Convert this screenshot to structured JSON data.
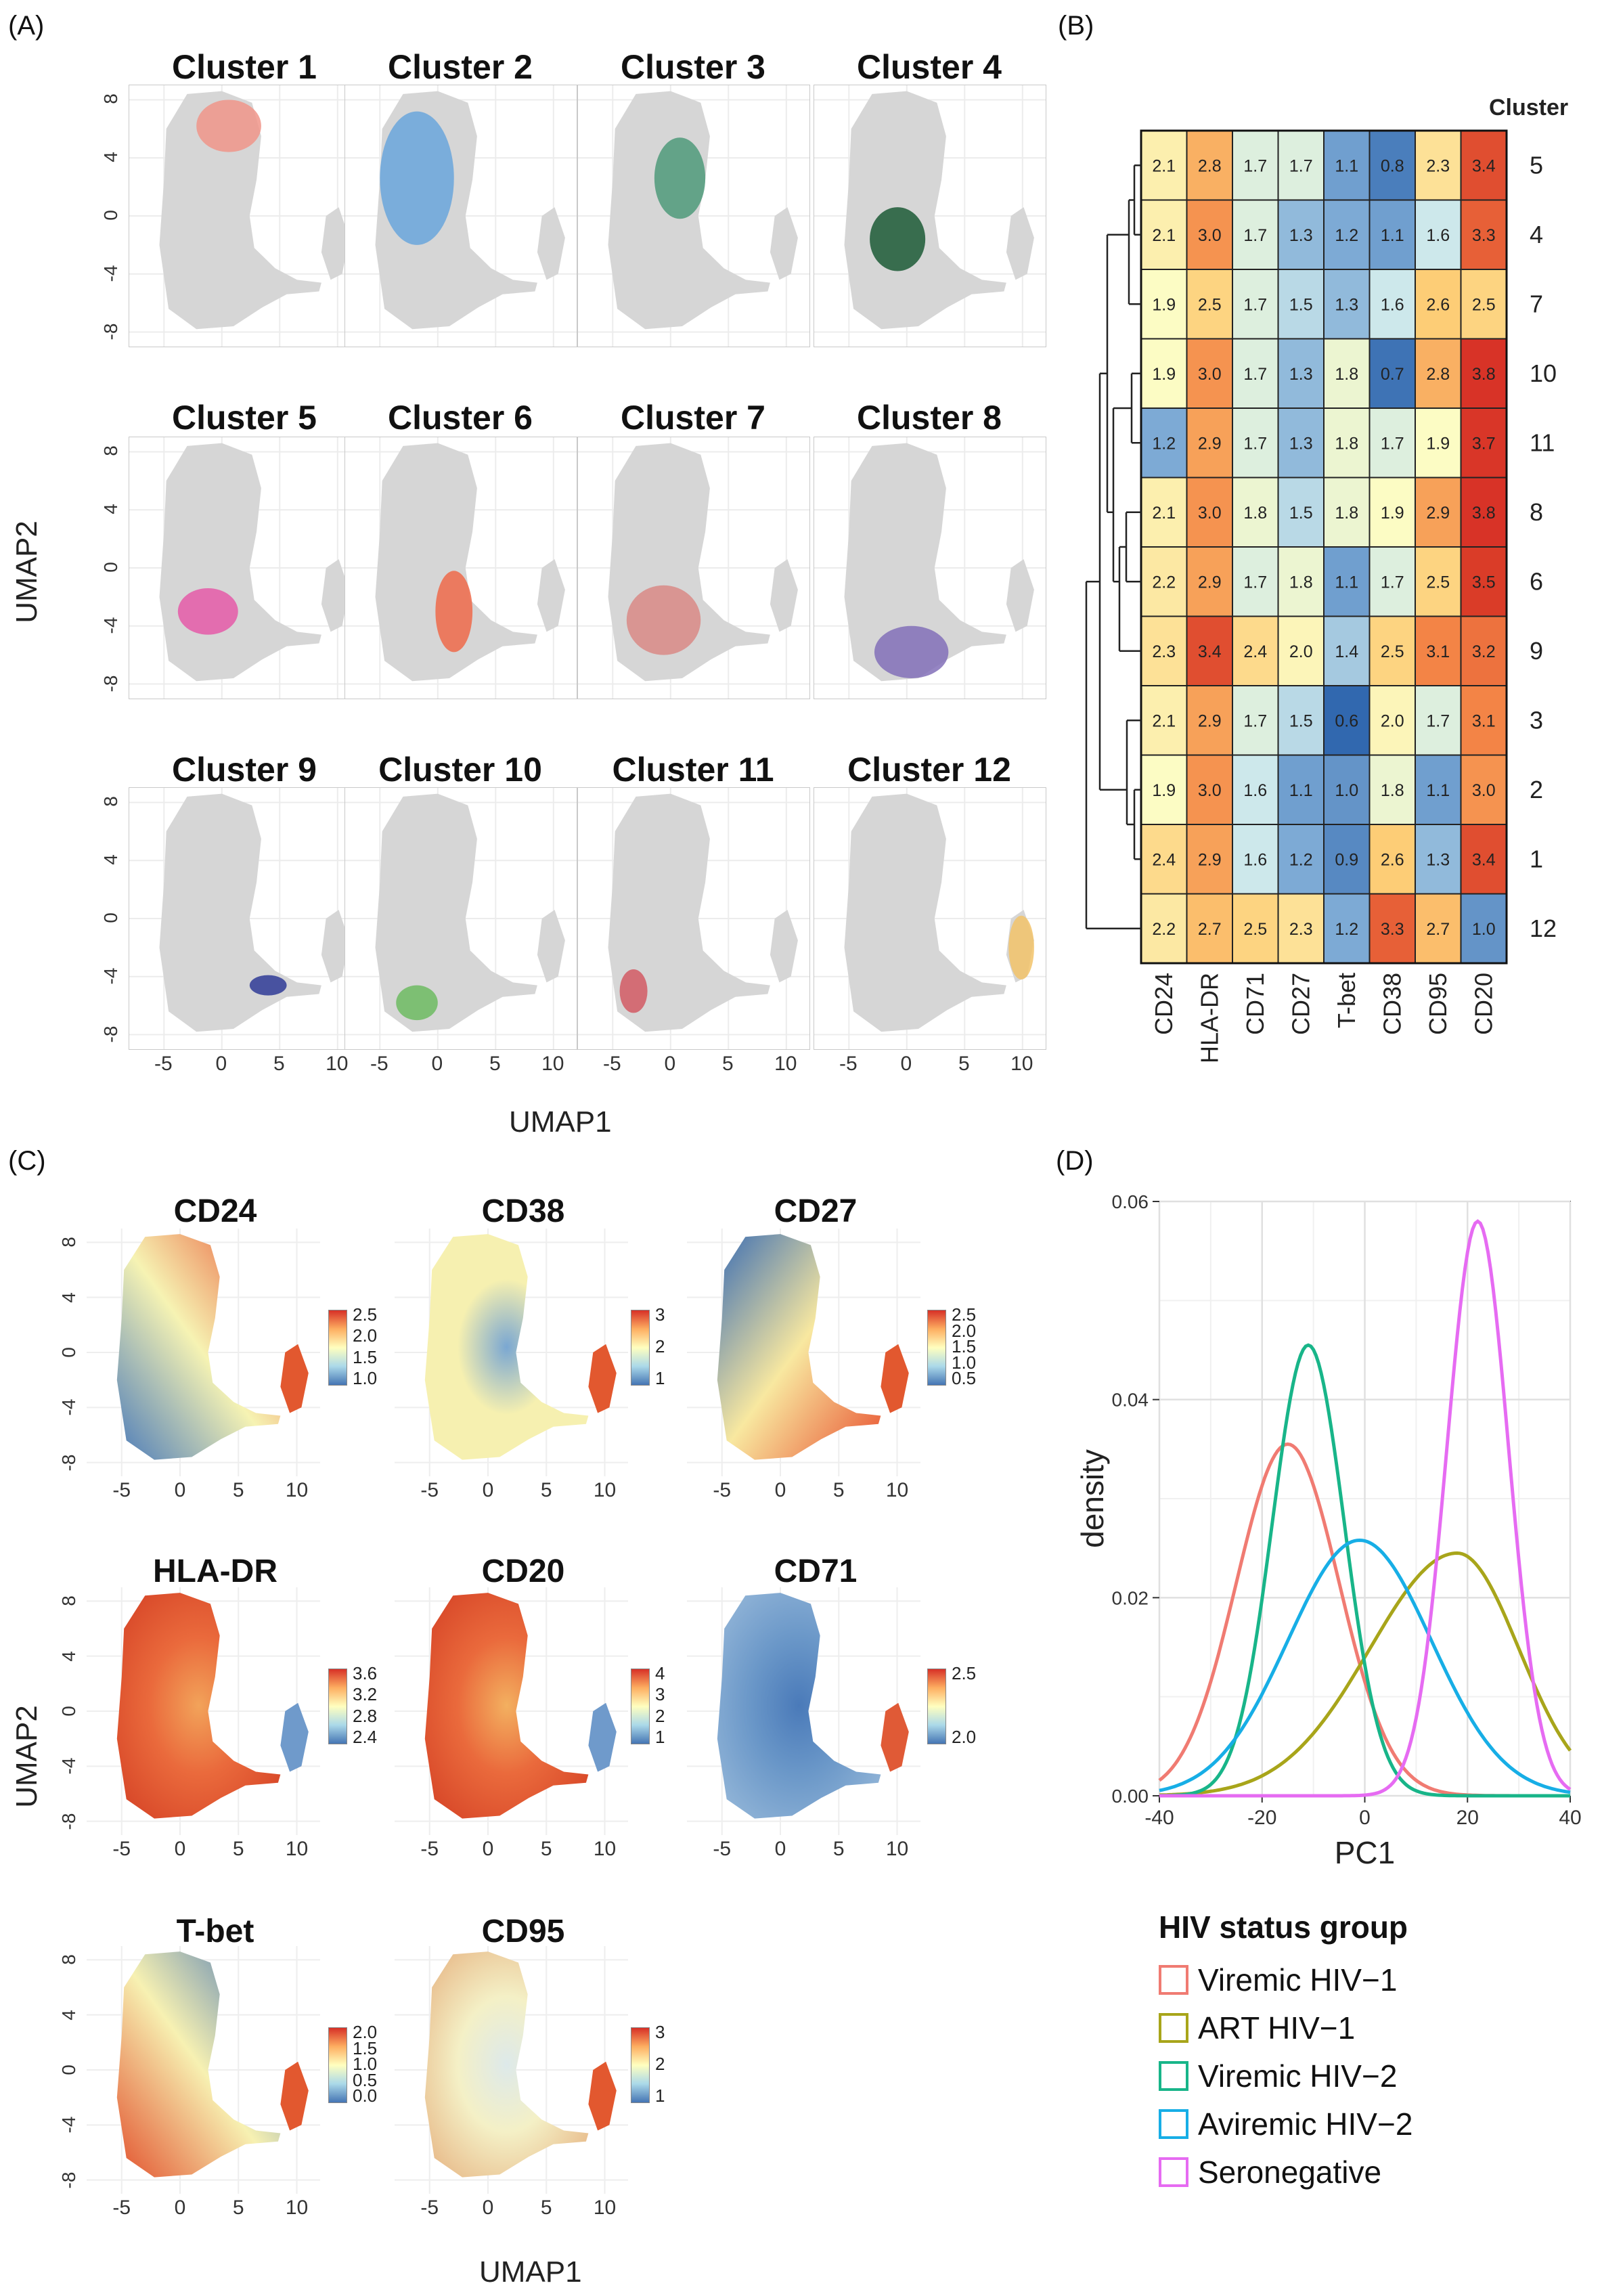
{
  "panels": {
    "a": "(A)",
    "b": "(B)",
    "c": "(C)",
    "d": "(D)"
  },
  "panel_a": {
    "x_label": "UMAP1",
    "y_label": "UMAP2",
    "x_ticks": [
      "-5",
      "0",
      "5",
      "10"
    ],
    "y_ticks": [
      "8",
      "4",
      "0",
      "-4",
      "-8"
    ],
    "clusters": [
      {
        "title": "Cluster 1",
        "color": "#f0958a"
      },
      {
        "title": "Cluster 2",
        "color": "#6aa6dc"
      },
      {
        "title": "Cluster 3",
        "color": "#4f9a7a"
      },
      {
        "title": "Cluster 4",
        "color": "#1c5a36"
      },
      {
        "title": "Cluster 5",
        "color": "#e55aa8"
      },
      {
        "title": "Cluster 6",
        "color": "#ee6a4a"
      },
      {
        "title": "Cluster 7",
        "color": "#d98a86"
      },
      {
        "title": "Cluster 8",
        "color": "#8270b8"
      },
      {
        "title": "Cluster 9",
        "color": "#2f3b96"
      },
      {
        "title": "Cluster 10",
        "color": "#6dbb62"
      },
      {
        "title": "Cluster 11",
        "color": "#d25a64"
      },
      {
        "title": "Cluster 12",
        "color": "#f2c36a"
      }
    ]
  },
  "panel_b": {
    "legend_title": "Cluster",
    "markers": [
      "CD24",
      "HLA-DR",
      "CD71",
      "CD27",
      "T-bet",
      "CD38",
      "CD95",
      "CD20"
    ],
    "rows": [
      {
        "cluster": "5",
        "values": [
          2.1,
          2.8,
          1.7,
          1.7,
          1.1,
          0.8,
          2.3,
          3.4
        ],
        "labels": [
          "2.1",
          "2.8",
          "1.7",
          "1.7",
          "1.1",
          "0.8",
          "2.3",
          "3.4"
        ]
      },
      {
        "cluster": "4",
        "values": [
          2.1,
          3.0,
          1.7,
          1.3,
          1.2,
          1.1,
          1.6,
          3.3
        ],
        "labels": [
          "2.1",
          "3.0",
          "1.7",
          "1.3",
          "1.2",
          "1.1",
          "1.6",
          "3.3"
        ]
      },
      {
        "cluster": "7",
        "values": [
          1.9,
          2.5,
          1.7,
          1.5,
          1.3,
          1.6,
          2.6,
          2.5
        ],
        "labels": [
          "1.9",
          "2.5",
          "1.7",
          "1.5",
          "1.3",
          "1.6",
          "2.6",
          "2.5"
        ]
      },
      {
        "cluster": "10",
        "values": [
          1.9,
          3.0,
          1.7,
          1.3,
          1.8,
          0.7,
          2.8,
          3.8
        ],
        "labels": [
          "1.9",
          "3.0",
          "1.7",
          "1.3",
          "1.8",
          "0.7",
          "2.8",
          "3.8"
        ]
      },
      {
        "cluster": "11",
        "values": [
          1.2,
          2.9,
          1.7,
          1.3,
          1.8,
          1.7,
          1.9,
          3.7
        ],
        "labels": [
          "1.2",
          "2.9",
          "1.7",
          "1.3",
          "1.8",
          "1.7",
          "1.9",
          "3.7"
        ]
      },
      {
        "cluster": "8",
        "values": [
          2.1,
          3.0,
          1.8,
          1.5,
          1.8,
          1.9,
          2.9,
          3.8
        ],
        "labels": [
          "2.1",
          "3.0",
          "1.8",
          "1.5",
          "1.8",
          "1.9",
          "2.9",
          "3.8"
        ]
      },
      {
        "cluster": "6",
        "values": [
          2.2,
          2.9,
          1.7,
          1.8,
          1.1,
          1.7,
          2.5,
          3.5
        ],
        "labels": [
          "2.2",
          "2.9",
          "1.7",
          "1.8",
          "1.1",
          "1.7",
          "2.5",
          "3.5"
        ]
      },
      {
        "cluster": "9",
        "values": [
          2.3,
          3.4,
          2.4,
          2.0,
          1.4,
          2.5,
          3.1,
          3.2
        ],
        "labels": [
          "2.3",
          "3.4",
          "2.4",
          "2.0",
          "1.4",
          "2.5",
          "3.1",
          "3.2"
        ]
      },
      {
        "cluster": "3",
        "values": [
          2.1,
          2.9,
          1.7,
          1.5,
          0.6,
          2.0,
          1.7,
          3.1
        ],
        "labels": [
          "2.1",
          "2.9",
          "1.7",
          "1.5",
          "0.6",
          "2.0",
          "1.7",
          "3.1"
        ]
      },
      {
        "cluster": "2",
        "values": [
          1.9,
          3.0,
          1.6,
          1.1,
          1.0,
          1.8,
          1.1,
          3.0
        ],
        "labels": [
          "1.9",
          "3.0",
          "1.6",
          "1.1",
          "1.0",
          "1.8",
          "1.1",
          "3.0"
        ]
      },
      {
        "cluster": "1",
        "values": [
          2.4,
          2.9,
          1.6,
          1.2,
          0.9,
          2.6,
          1.3,
          3.4
        ],
        "labels": [
          "2.4",
          "2.9",
          "1.6",
          "1.2",
          "0.9",
          "2.6",
          "1.3",
          "3.4"
        ]
      },
      {
        "cluster": "12",
        "values": [
          2.2,
          2.7,
          2.5,
          2.3,
          1.2,
          3.3,
          2.7,
          1.0
        ],
        "labels": [
          "2.2",
          "2.7",
          "2.5",
          "2.3",
          "1.2",
          "3.3",
          "2.7",
          "1.0"
        ]
      }
    ]
  },
  "panel_c": {
    "x_label": "UMAP1",
    "y_label": "UMAP2",
    "x_ticks": [
      "-5",
      "0",
      "5",
      "10"
    ],
    "y_ticks": [
      "8",
      "4",
      "0",
      "-4",
      "-8"
    ],
    "features": [
      {
        "title": "CD24",
        "legend": [
          "2.5",
          "2.0",
          "1.5",
          "1.0"
        ]
      },
      {
        "title": "CD38",
        "legend": [
          "3",
          "2",
          "1"
        ]
      },
      {
        "title": "CD27",
        "legend": [
          "2.5",
          "2.0",
          "1.5",
          "1.0",
          "0.5"
        ]
      },
      {
        "title": "HLA-DR",
        "legend": [
          "3.6",
          "3.2",
          "2.8",
          "2.4"
        ]
      },
      {
        "title": "CD20",
        "legend": [
          "4",
          "3",
          "2",
          "1"
        ]
      },
      {
        "title": "CD71",
        "legend": [
          "2.5",
          "2.0"
        ]
      },
      {
        "title": "T-bet",
        "legend": [
          "2.0",
          "1.5",
          "1.0",
          "0.5",
          "0.0"
        ]
      },
      {
        "title": "CD95",
        "legend": [
          "3",
          "2",
          "1"
        ]
      }
    ]
  },
  "chart_data": [
    {
      "type": "heatmap",
      "title": "",
      "row_order": [
        "5",
        "4",
        "7",
        "10",
        "11",
        "8",
        "6",
        "9",
        "3",
        "2",
        "1",
        "12"
      ],
      "columns": [
        "CD24",
        "HLA-DR",
        "CD71",
        "CD27",
        "T-bet",
        "CD38",
        "CD95",
        "CD20"
      ]
    },
    {
      "type": "line",
      "title": "",
      "xlabel": "PC1",
      "ylabel": "density",
      "xlim": [
        -40,
        40
      ],
      "ylim": [
        0,
        0.06
      ],
      "x_ticks": [
        -40,
        -20,
        0,
        20,
        40
      ],
      "y_ticks": [
        "0.00",
        "0.02",
        "0.04",
        "0.06"
      ],
      "x_tick_labels": [
        "-40",
        "-20",
        "0",
        "20",
        "40"
      ],
      "series": [
        {
          "name": "Viremic HIV-1",
          "color": "#f07b72",
          "peak_x": -15,
          "peak_y": 0.0355,
          "sd": 10
        },
        {
          "name": "ART HIV-1",
          "color": "#a8a51a",
          "peak_x": 18,
          "peak_y": 0.0245,
          "sd_left": 17,
          "sd_right": 12
        },
        {
          "name": "Viremic HIV-2",
          "color": "#18b589",
          "peak_x": -11,
          "peak_y": 0.0455,
          "sd": 7
        },
        {
          "name": "Aviremic HIV-2",
          "color": "#17aee6",
          "peak_x": -1,
          "peak_y": 0.0258,
          "sd": 14
        },
        {
          "name": "Seronegative",
          "color": "#e66bf2",
          "peak_x": 22,
          "peak_y": 0.058,
          "sd": 6
        }
      ]
    }
  ],
  "legend_d": {
    "title": "HIV status group",
    "items": [
      "Viremic HIV−1",
      "ART HIV−1",
      "Viremic HIV−2",
      "Aviremic HIV−2",
      "Seronegative"
    ],
    "colors": [
      "#f07b72",
      "#a8a51a",
      "#18b589",
      "#17aee6",
      "#e66bf2"
    ]
  }
}
